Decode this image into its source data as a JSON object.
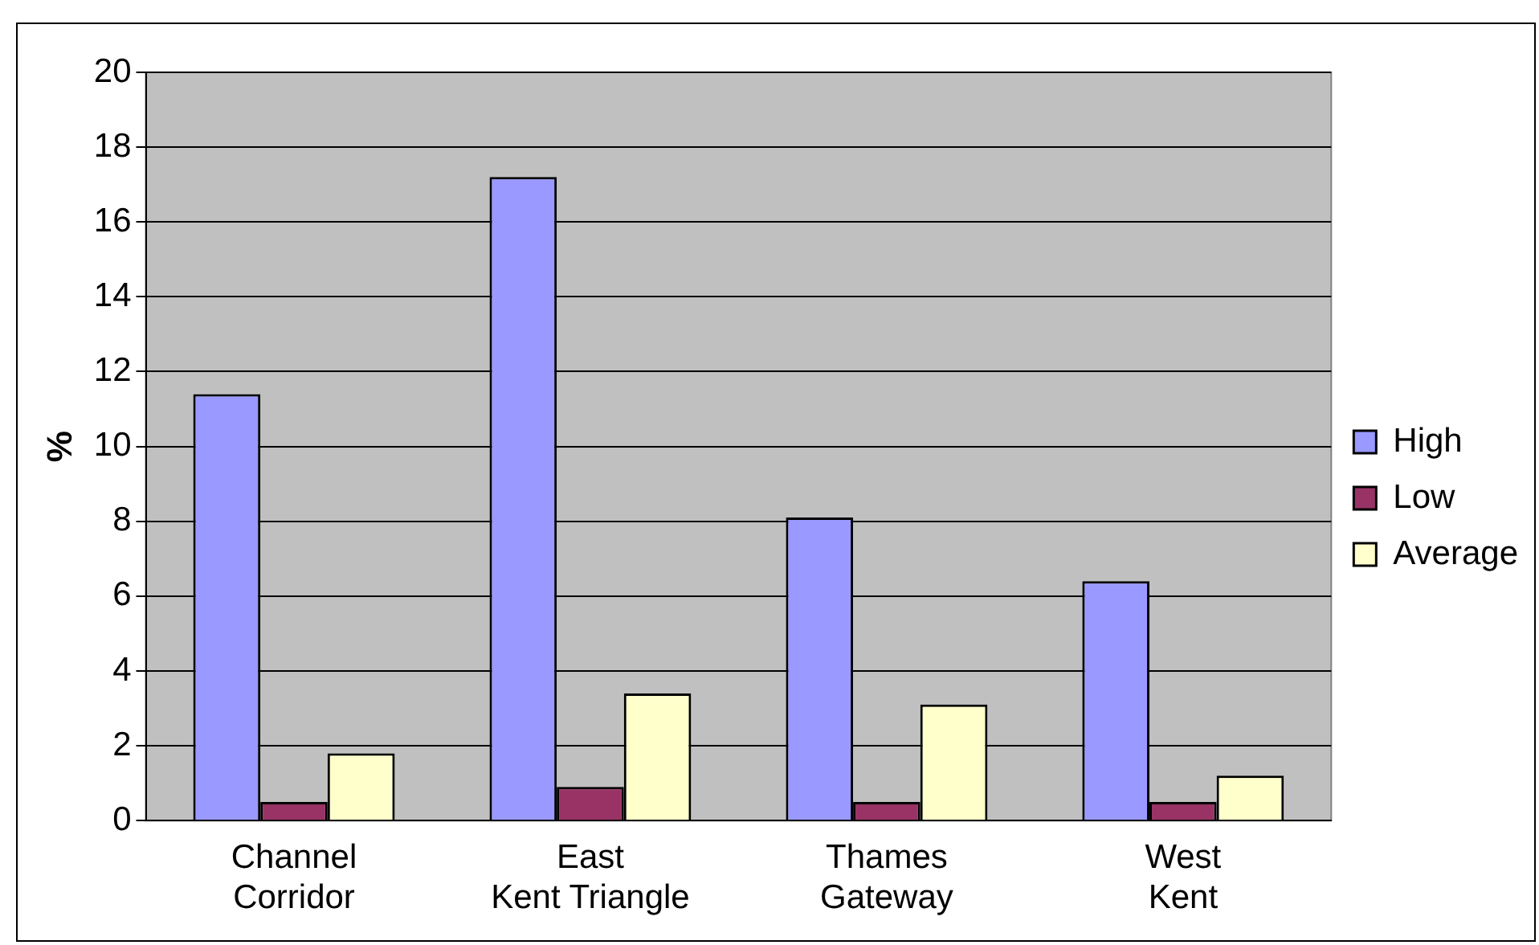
{
  "chart_data": {
    "type": "bar",
    "ylabel": "%",
    "categories": [
      "Channel Corridor",
      "East Kent Triangle",
      "Thames Gateway",
      "West Kent"
    ],
    "series": [
      {
        "name": "High",
        "color": "#9999ff",
        "values": [
          11.4,
          17.2,
          8.1,
          6.4
        ]
      },
      {
        "name": "Low",
        "color": "#993366",
        "values": [
          0.5,
          0.9,
          0.5,
          0.5
        ]
      },
      {
        "name": "Average",
        "color": "#ffffcc",
        "values": [
          1.8,
          3.4,
          3.1,
          1.2
        ]
      }
    ],
    "ylim": [
      0,
      20
    ],
    "yticks": [
      0,
      2,
      4,
      6,
      8,
      10,
      12,
      14,
      16,
      18,
      20
    ],
    "grid": "y",
    "legend": "right"
  }
}
